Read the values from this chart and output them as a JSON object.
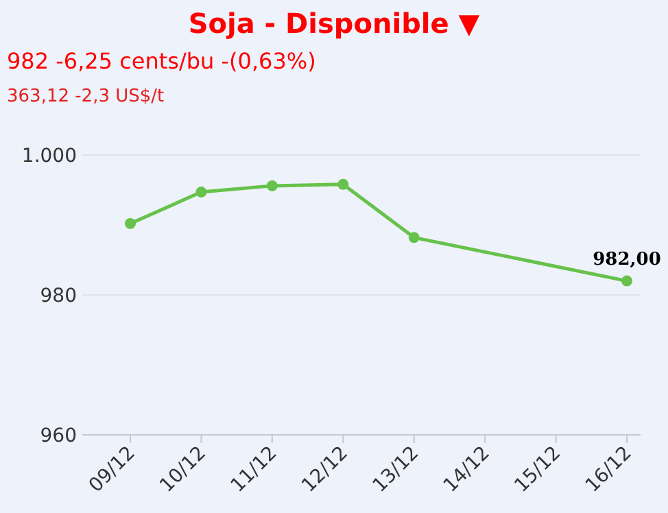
{
  "chart_data": {
    "type": "line",
    "title": "Soja - Disponible ▼",
    "subtitle": "982 -6,25 cents/bu -(0,63%)",
    "annotations": [
      "363,12 -2,3 US$/t"
    ],
    "categories": [
      "09/12",
      "10/12",
      "11/12",
      "12/12",
      "13/12",
      "14/12",
      "15/12",
      "16/12"
    ],
    "series": [
      {
        "color": "#66c24a",
        "values": [
          990.2,
          994.7,
          995.6,
          995.8,
          988.2,
          null,
          null,
          982.0
        ],
        "value_labels": [
          null,
          null,
          null,
          null,
          null,
          null,
          null,
          "982,00"
        ]
      }
    ],
    "ylim": [
      960,
      1000
    ],
    "yticks": [
      {
        "value": 960,
        "label": "960"
      },
      {
        "value": 980,
        "label": "980"
      },
      {
        "value": 1000,
        "label": "1.000"
      }
    ],
    "grid": "y",
    "marker": "circle"
  }
}
